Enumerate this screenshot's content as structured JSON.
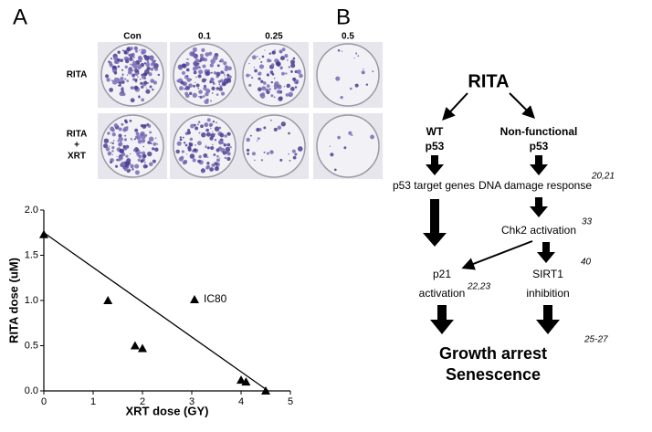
{
  "panel_a": {
    "label": "A",
    "columns": [
      "Con",
      "0.1",
      "0.25",
      "0.5"
    ],
    "rows": [
      [
        "RITA"
      ],
      [
        "RITA",
        "+",
        "XRT"
      ]
    ]
  },
  "chart_data": {
    "type": "scatter",
    "x_label": "XRT dose (GY)",
    "y_label": "RITA dose (uM)",
    "xlim": [
      0,
      5
    ],
    "xticks": [
      0,
      1,
      2,
      3,
      4,
      5
    ],
    "ylim": [
      0,
      2
    ],
    "yticks": [
      {
        "value": 0,
        "label": "0.0"
      },
      {
        "value": 0.5,
        "label": "0.5"
      },
      {
        "value": 1,
        "label": "1.0"
      },
      {
        "value": 1.5,
        "label": "1.5"
      },
      {
        "value": 2,
        "label": "2.0"
      }
    ],
    "series": [
      {
        "name": "IC80",
        "color": "#000000",
        "x": [
          0,
          1.3,
          1.85,
          2.0,
          4.0,
          4.1,
          4.5
        ],
        "values": [
          1.73,
          1.0,
          0.5,
          0.47,
          0.12,
          0.1,
          0.0
        ]
      }
    ],
    "fit_line": {
      "x": [
        0,
        4.55
      ],
      "values": [
        1.75,
        0
      ]
    }
  },
  "panel_b": {
    "label": "B",
    "root": "RITA",
    "left_head": [
      "WT",
      "p53"
    ],
    "right_head": [
      "Non-functional",
      "p53"
    ],
    "p53_target": "p53 target genes",
    "ddr": "DNA damage response",
    "ddr_ref": "20,21",
    "chk2": "Chk2 activation",
    "chk2_ref": "33",
    "p21": [
      "p21",
      "activation"
    ],
    "p21_ref": "22,23",
    "sirt1": [
      "SIRT1",
      "inhibition"
    ],
    "sirt1_ref": "40",
    "outcome": [
      "Growth arrest",
      "Senescence"
    ],
    "outcome_ref": "25-27"
  }
}
